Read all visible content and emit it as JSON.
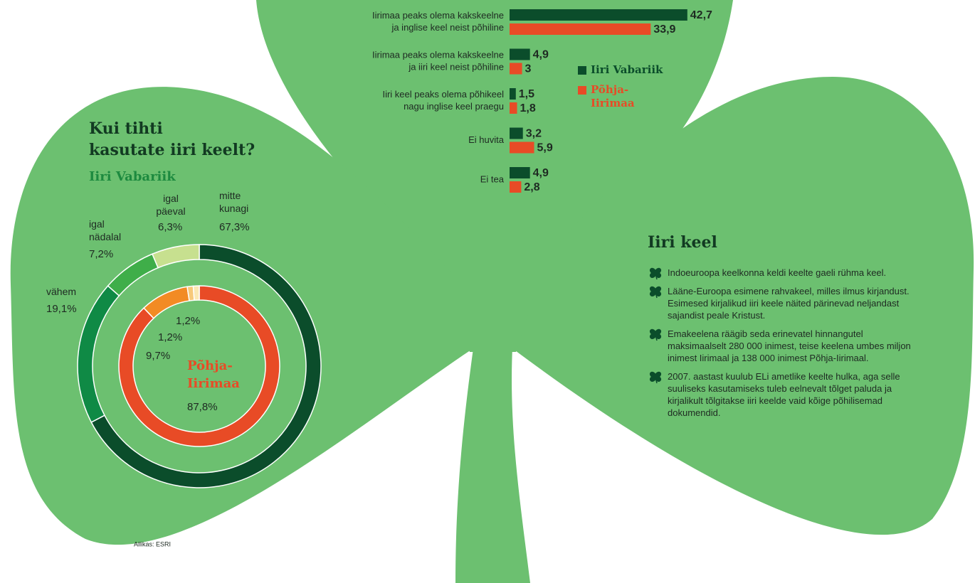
{
  "chart_data": [
    {
      "type": "bar",
      "orientation": "horizontal",
      "categories": [
        [
          "Iirimaa peaks olema kakskeelne",
          "ja inglise keel neist põhiline"
        ],
        [
          "Iirimaa peaks olema kakskeelne",
          "ja iiri keel neist põhiline"
        ],
        [
          "Iiri keel peaks olema põhikeel",
          "nagu inglise keel praegu"
        ],
        [
          "Ei huvita"
        ],
        [
          "Ei tea"
        ]
      ],
      "series": [
        {
          "name": "Iiri Vabariik",
          "color": "#0b4d2b",
          "values": [
            42.7,
            4.9,
            1.5,
            3.2,
            4.9
          ],
          "value_labels": [
            "42,7",
            "4,9",
            "1,5",
            "3,2",
            "4,9"
          ]
        },
        {
          "name": "Põhja-Iirimaa",
          "color": "#e84b26",
          "values": [
            33.9,
            3,
            1.8,
            5.9,
            2.8
          ],
          "value_labels": [
            "33,9",
            "3",
            "1,8",
            "5,9",
            "2,8"
          ]
        }
      ],
      "legend": "right"
    },
    {
      "type": "donut",
      "title": [
        "Kui tihti",
        "kasutate iiri keelt?"
      ],
      "categories": [
        "mitte kunagi",
        "vähem",
        "igal nädalal",
        "igal päeval"
      ],
      "series": [
        {
          "name": "Iiri Vabariik",
          "color": "#1d8a3f",
          "colors": [
            "#0b4d2b",
            "#0f8a45",
            "#3fae49",
            "#c7e08f"
          ],
          "values": [
            67.3,
            19.1,
            7.2,
            6.3
          ],
          "value_labels": [
            "67,3%",
            "19,1%",
            "7,2%",
            "6,3%"
          ]
        },
        {
          "name": "Põhja-Iirimaa",
          "color": "#e84b26",
          "colors": [
            "#e84b26",
            "#f28b24",
            "#f7c97a",
            "#fbe8b3"
          ],
          "values": [
            87.8,
            9.7,
            1.2,
            1.2
          ],
          "value_labels": [
            "87,8%",
            "9,7%",
            "1,2%",
            "1,2%"
          ]
        }
      ],
      "source": "Allikas: ESRI"
    }
  ],
  "info": {
    "title": "Iiri keel",
    "items": [
      "Indoeuroopa keelkonna keldi keelte gaeli rühma keel.",
      "Lääne-Euroopa esimene rahvakeel, milles ilmus kirjandust. Esimesed kirjalikud iiri keele näited pärinevad neljandast sajandist peale Kristust.",
      "Emakeelena räägib seda erinevatel hinnangutel maksimaalselt 280 000 inimest, teise keelena umbes miljon inimest Iirimaal ja 138 000 inimest Põhja-Iirimaal.",
      "2007. aastast kuulub ELi ametlike keelte hulka, aga selle suuliseks kasutamiseks tuleb eelnevalt tõlget paluda ja kirjalikult tõlgitakse iiri keelde vaid kõige põhilisemad dokumendid."
    ]
  }
}
